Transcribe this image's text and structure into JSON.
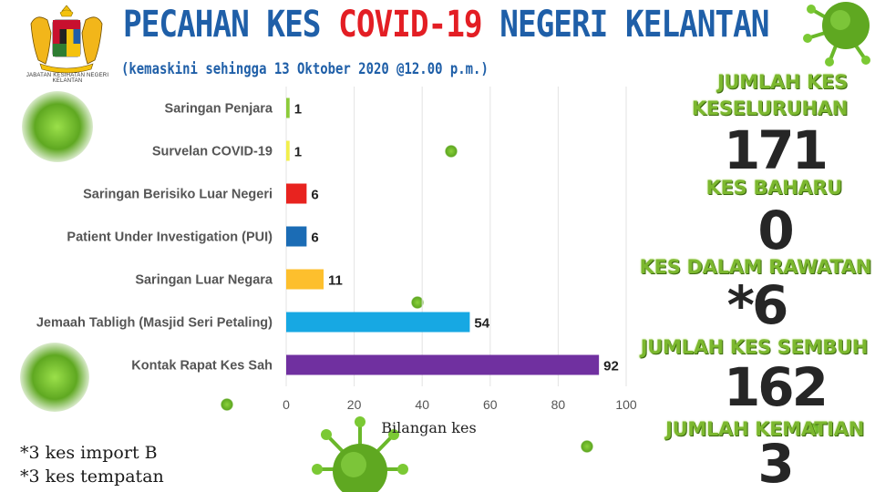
{
  "logo": {
    "caption": "JABATAN KESIHATAN NEGERI KELANTAN"
  },
  "header": {
    "title_part1": "PECAHAN KES ",
    "title_highlight": "COVID-19",
    "title_part2": " NEGERI KELANTAN",
    "subtitle": "(kemaskini sehingga 13 Oktober 2020 @12.00 p.m.)"
  },
  "chart_data": {
    "type": "bar",
    "orientation": "horizontal",
    "categories": [
      "Saringan Penjara",
      "Survelan COVID-19",
      "Saringan Berisiko Luar Negeri",
      "Patient Under Investigation (PUI)",
      "Saringan Luar Negara",
      "Jemaah Tabligh (Masjid Seri Petaling)",
      "Kontak Rapat Kes Sah"
    ],
    "values": [
      1,
      1,
      6,
      6,
      11,
      54,
      92
    ],
    "colors": [
      "#8ccb3a",
      "#f2ef4c",
      "#e8231f",
      "#1b6cb5",
      "#fdbf2d",
      "#17a8e3",
      "#7030a0"
    ],
    "xlabel": "Bilangan kes",
    "xlim": [
      0,
      100
    ],
    "xticks": [
      0,
      20,
      40,
      60,
      80,
      100
    ],
    "grid": true,
    "data_labels": true
  },
  "stats": {
    "total_label_line1": "JUMLAH KES",
    "total_label_line2": "KESELURUHAN",
    "total_value": "171",
    "new_label": "KES BAHARU",
    "new_value": "0",
    "treatment_label": "KES DALAM RAWATAN",
    "treatment_value": "*6",
    "recovered_label": "JUMLAH KES SEMBUH",
    "recovered_value": "162",
    "deaths_label": "JUMLAH KEMATIAN",
    "deaths_value": "3"
  },
  "footnotes": {
    "import": "*3 kes import B",
    "local": "*3 kes tempatan"
  },
  "colors": {
    "title_blue": "#1f5fa8",
    "title_red": "#e31e24",
    "stat_green": "#7cb82f",
    "virus_green": "#6fb52c"
  }
}
